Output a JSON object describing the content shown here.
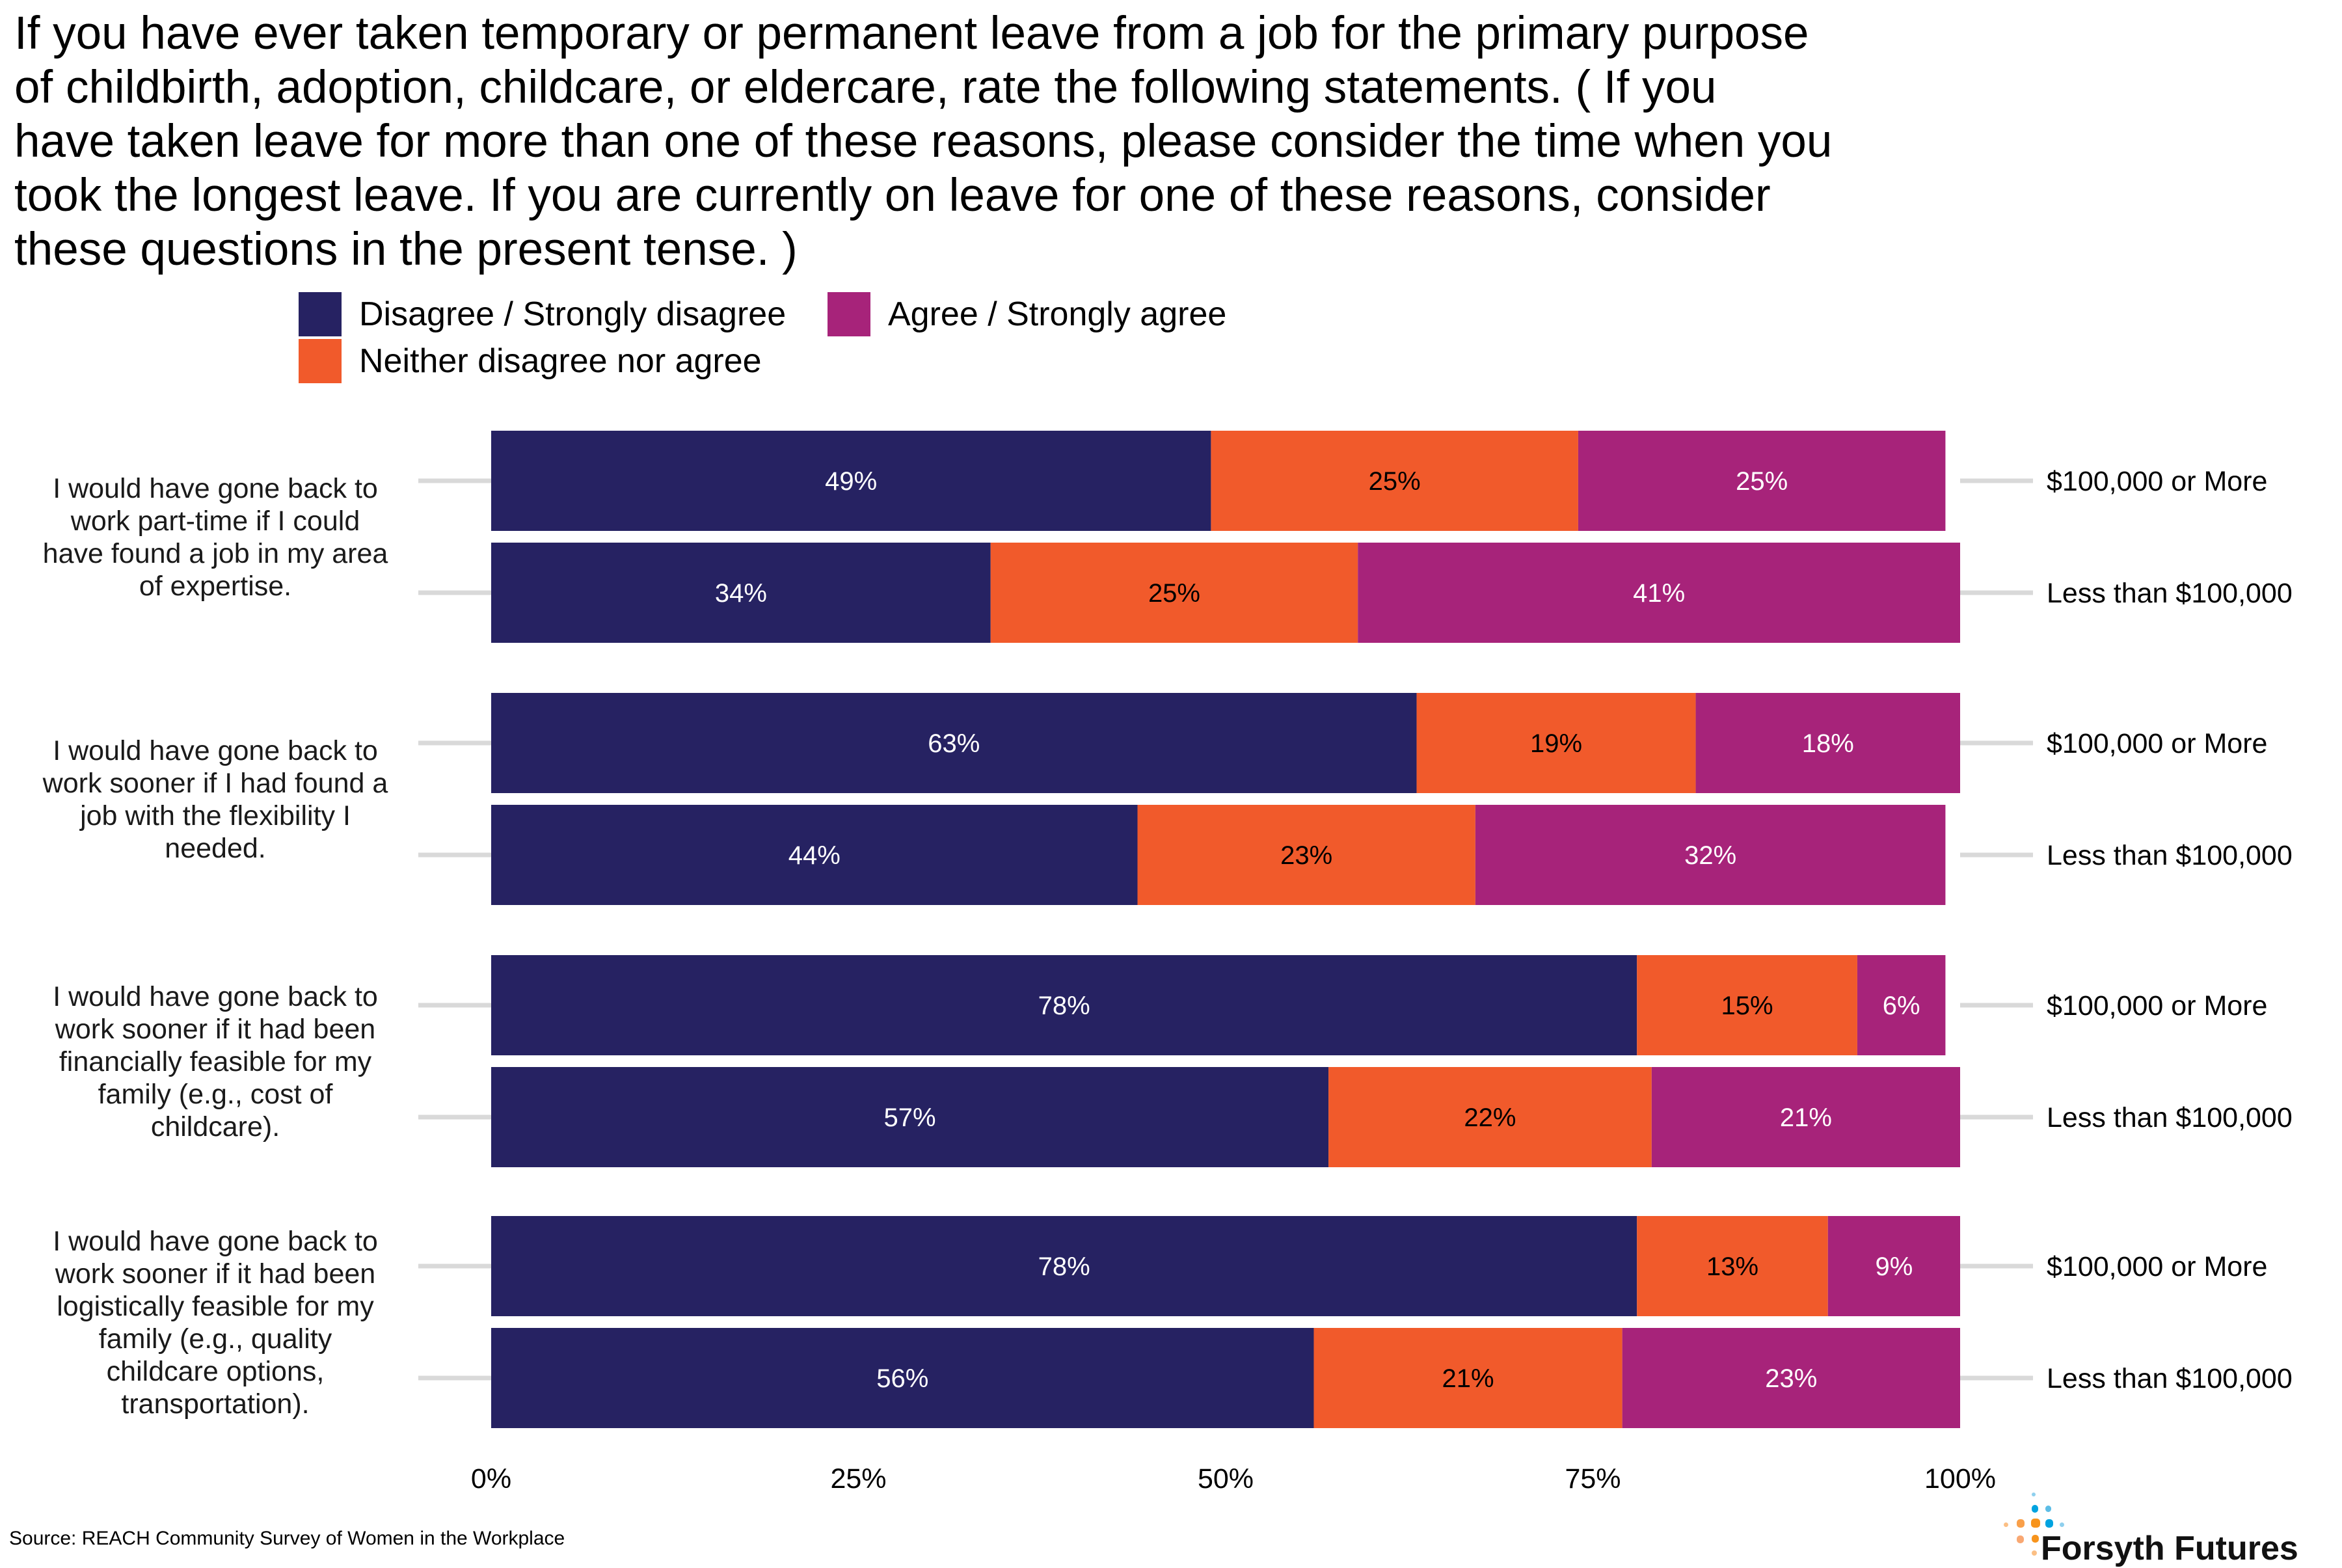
{
  "title": "If you have ever taken temporary or permanent leave from a job for the primary purpose of childbirth, adoption, childcare, or eldercare, rate the following statements. ( If you have taken leave for more than one of these reasons, please consider the time when you took the longest leave. If you are currently on leave for one of these reasons, consider these questions in the present tense. )",
  "title_lines": [
    "If you have ever taken temporary or permanent leave from a job for the primary purpose",
    "of childbirth, adoption, childcare, or eldercare, rate the following statements. ( If you",
    "have taken leave for more than one of these reasons, please consider the time when you",
    "took the longest leave. If you are currently on leave for one of these reasons, consider",
    "these questions in the present tense. )"
  ],
  "source": "Source: REACH Community Survey of Women in the Workplace",
  "logo": {
    "text": "Forsyth Futures",
    "colors": {
      "orange": "#f7941d",
      "blue": "#00a3e0"
    }
  },
  "chart_data": {
    "type": "bar",
    "orientation": "horizontal",
    "stacked": true,
    "title": "If you have ever taken temporary or permanent leave from a job for the primary purpose of childbirth, adoption, childcare, or eldercare, rate the following statements. ( If you have taken leave for more than one of these reasons, please consider the time when you took the longest leave. If you are currently on leave for one of these reasons, consider these questions in the present tense. )",
    "xlabel": "",
    "ylabel": "",
    "xlim": [
      0,
      100
    ],
    "x_ticks": [
      "0%",
      "25%",
      "50%",
      "75%",
      "100%"
    ],
    "x_tick_values": [
      0,
      25,
      50,
      75,
      100
    ],
    "grid": false,
    "legend_position": "top",
    "series": [
      {
        "name": "Disagree / Strongly disagree",
        "color": "#262262",
        "label_color": "#ffffff"
      },
      {
        "name": "Neither disagree nor agree",
        "color": "#f15a2b",
        "label_color": "#000000"
      },
      {
        "name": "Agree / Strongly agree",
        "color": "#a7237a",
        "label_color": "#ffffff"
      }
    ],
    "groups": [
      {
        "statement": "I would have gone back to work part-time if I could have found a job in my area of expertise.",
        "statement_lines": [
          "I would have gone back to",
          "work part-time if I could",
          "have found a job in my area",
          "of expertise."
        ],
        "rows": [
          {
            "income": "$100,000 or More",
            "values": [
              49,
              25,
              25
            ],
            "labels": [
              "49%",
              "25%",
              "25%"
            ]
          },
          {
            "income": "Less than $100,000",
            "values": [
              34,
              25,
              41
            ],
            "labels": [
              "34%",
              "25%",
              "41%"
            ]
          }
        ]
      },
      {
        "statement": "I would have gone back to work sooner if I had found a job with the flexibility I needed.",
        "statement_lines": [
          "I would have gone back to",
          "work sooner if I had found a",
          "job with the flexibility I",
          "needed."
        ],
        "rows": [
          {
            "income": "$100,000 or More",
            "values": [
              63,
              19,
              18
            ],
            "labels": [
              "63%",
              "19%",
              "18%"
            ]
          },
          {
            "income": "Less than $100,000",
            "values": [
              44,
              23,
              32
            ],
            "labels": [
              "44%",
              "23%",
              "32%"
            ]
          }
        ]
      },
      {
        "statement": "I would have gone back to work sooner if it had been financially feasible for my family (e.g., cost of childcare).",
        "statement_lines": [
          "I would have gone back to",
          "work sooner if it had been",
          "financially feasible for my",
          "family (e.g., cost of",
          "childcare)."
        ],
        "rows": [
          {
            "income": "$100,000 or More",
            "values": [
              78,
              15,
              6
            ],
            "labels": [
              "78%",
              "15%",
              "6%"
            ]
          },
          {
            "income": "Less than $100,000",
            "values": [
              57,
              22,
              21
            ],
            "labels": [
              "57%",
              "22%",
              "21%"
            ]
          }
        ]
      },
      {
        "statement": "I would have gone back to work sooner if it had been logistically feasible for my family (e.g., quality childcare options, transportation).",
        "statement_lines": [
          "I would have gone back to",
          "work sooner if it had been",
          "logistically feasible for my",
          "family (e.g., quality",
          "childcare options,",
          "transportation)."
        ],
        "rows": [
          {
            "income": "$100,000 or More",
            "values": [
              78,
              13,
              9
            ],
            "labels": [
              "78%",
              "13%",
              "9%"
            ]
          },
          {
            "income": "Less than $100,000",
            "values": [
              56,
              21,
              23
            ],
            "labels": [
              "56%",
              "21%",
              "23%"
            ]
          }
        ]
      }
    ]
  }
}
